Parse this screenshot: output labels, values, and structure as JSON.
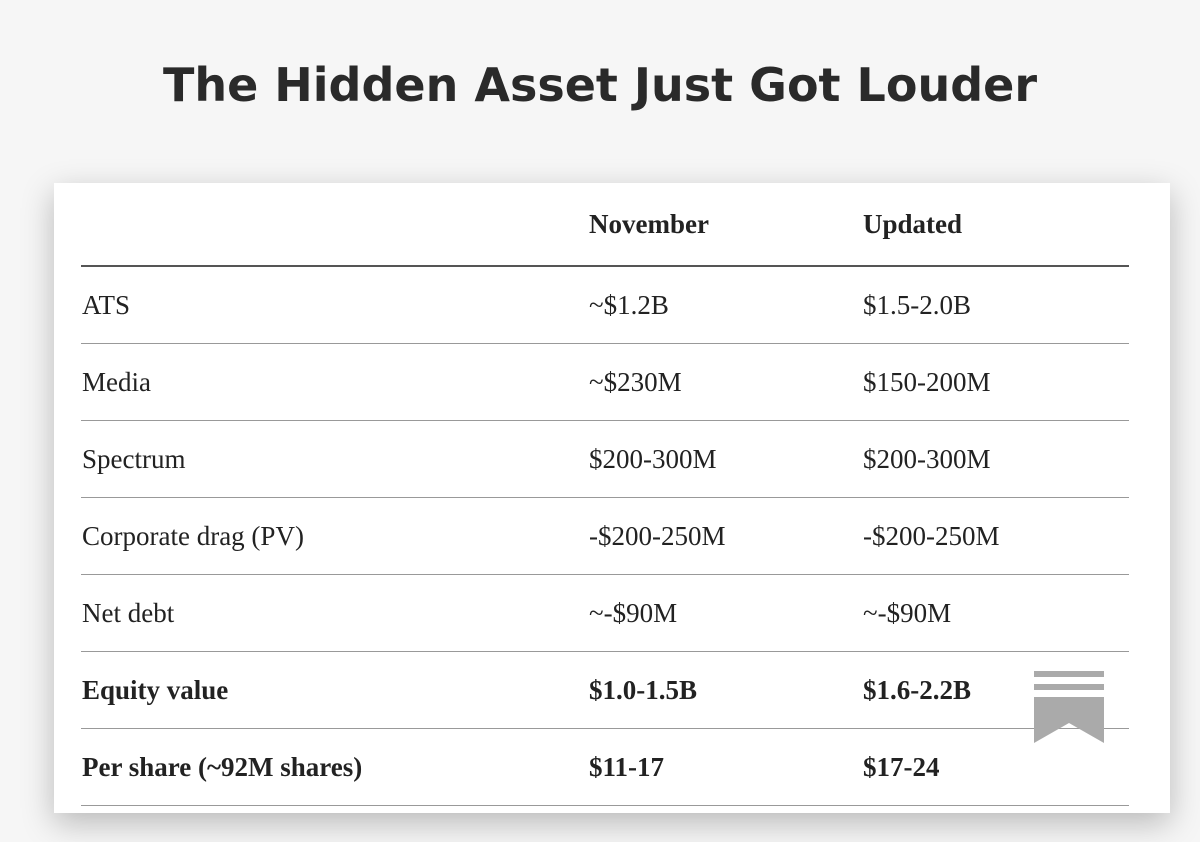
{
  "header": {
    "title": "The Hidden Asset Just Got Louder"
  },
  "table": {
    "columns": [
      "",
      "November",
      "Updated"
    ],
    "rows": [
      [
        "ATS",
        "~$1.2B",
        "$1.5-2.0B"
      ],
      [
        "Media",
        "~$230M",
        "$150-200M"
      ],
      [
        "Spectrum",
        "$200-300M",
        "$200-300M"
      ],
      [
        "Corporate drag (PV)",
        "-$200-250M",
        "-$200-250M"
      ],
      [
        "Net debt",
        "~-$90M",
        "~-$90M"
      ],
      [
        "Equity value",
        "$1.0-1.5B",
        "$1.6-2.2B"
      ],
      [
        "Per share (~92M shares)",
        "$11-17",
        "$17-24"
      ]
    ],
    "bold_rows": [
      5,
      6
    ]
  }
}
